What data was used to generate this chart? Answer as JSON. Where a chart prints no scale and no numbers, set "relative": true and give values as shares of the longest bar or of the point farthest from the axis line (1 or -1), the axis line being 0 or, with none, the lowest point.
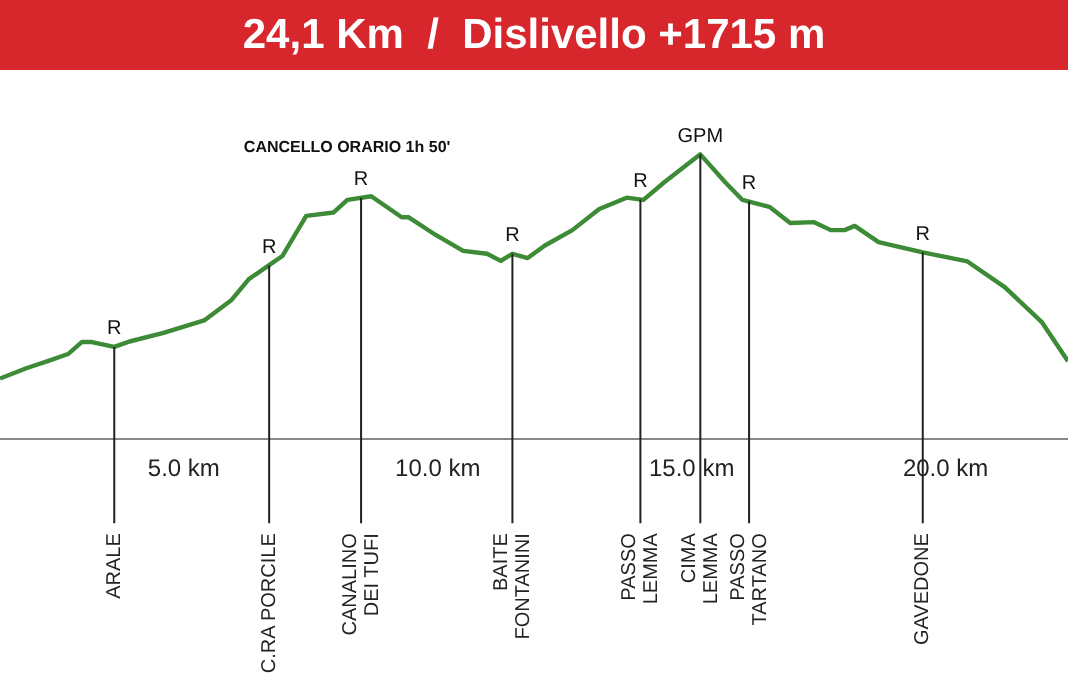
{
  "chart_data": {
    "type": "line",
    "title": "24,1 Km  /  Dislivello +1715 m",
    "relative": true,
    "x": [
      1.38,
      1.91,
      2.32,
      2.72,
      2.99,
      3.19,
      3.63,
      3.93,
      4.6,
      5.4,
      5.94,
      6.28,
      6.68,
      6.94,
      7.41,
      7.95,
      8.22,
      8.69,
      9.29,
      9.43,
      9.96,
      10.5,
      10.97,
      11.24,
      11.47,
      11.77,
      12.11,
      12.65,
      13.18,
      13.72,
      14.05,
      14.46,
      15.17,
      15.66,
      16.0,
      16.53,
      16.94,
      17.41,
      17.74,
      18.01,
      18.21,
      18.68,
      19.55,
      20.43,
      21.17,
      21.9,
      22.41
    ],
    "values": [
      0.213,
      0.25,
      0.274,
      0.299,
      0.341,
      0.341,
      0.324,
      0.343,
      0.373,
      0.417,
      0.489,
      0.562,
      0.611,
      0.643,
      0.784,
      0.796,
      0.84,
      0.853,
      0.779,
      0.779,
      0.717,
      0.661,
      0.651,
      0.626,
      0.651,
      0.636,
      0.68,
      0.734,
      0.808,
      0.848,
      0.84,
      0.902,
      1.0,
      0.902,
      0.84,
      0.816,
      0.759,
      0.762,
      0.734,
      0.734,
      0.749,
      0.692,
      0.656,
      0.624,
      0.533,
      0.41,
      0.274
    ],
    "color": "#3d8b37",
    "xlim": [
      1.38,
      22.41
    ],
    "xticks": [
      {
        "value": 5,
        "label": "5.0 km"
      },
      {
        "value": 10,
        "label": "10.0 km"
      },
      {
        "value": 15,
        "label": "15.0 km"
      },
      {
        "value": 20,
        "label": "20.0 km"
      }
    ],
    "marker": "none",
    "line_style": "solid",
    "legend": false,
    "ref_lines": [
      {
        "axis": "x",
        "value": 3.63,
        "label": "ARALE",
        "color": "#222222"
      },
      {
        "axis": "x",
        "value": 6.68,
        "label": "C.RA PORCILE",
        "color": "#222222"
      },
      {
        "axis": "x",
        "value": 8.49,
        "label": "CANALINO\nDEI TUFI",
        "color": "#222222"
      },
      {
        "axis": "x",
        "value": 11.47,
        "label": "BAITE\nFONTANINI",
        "color": "#222222"
      },
      {
        "axis": "x",
        "value": 13.99,
        "label": "PASSO\nLEMMA",
        "color": "#222222"
      },
      {
        "axis": "x",
        "value": 15.17,
        "label": "CIMA\nLEMMA",
        "color": "#222222"
      },
      {
        "axis": "x",
        "value": 16.13,
        "label": "PASSO\nTARTANO",
        "color": "#222222"
      },
      {
        "axis": "x",
        "value": 19.55,
        "label": "GAVEDONE",
        "color": "#222222"
      }
    ],
    "annotations": [
      "CANCELLO ORARIO 1h 50'",
      {
        "text": "R",
        "x": 3.63,
        "y": 0.324
      },
      {
        "text": "R",
        "x": 6.68,
        "y": 0.611
      },
      {
        "text": "R",
        "x": 8.49,
        "y": 0.85
      },
      {
        "text": "R",
        "x": 11.47,
        "y": 0.651
      },
      {
        "text": "R",
        "x": 13.99,
        "y": 0.84
      },
      {
        "text": "GPM",
        "x": 15.17,
        "y": 1.0
      },
      {
        "text": "R",
        "x": 16.13,
        "y": 0.835
      },
      {
        "text": "R",
        "x": 19.55,
        "y": 0.656
      }
    ]
  }
}
